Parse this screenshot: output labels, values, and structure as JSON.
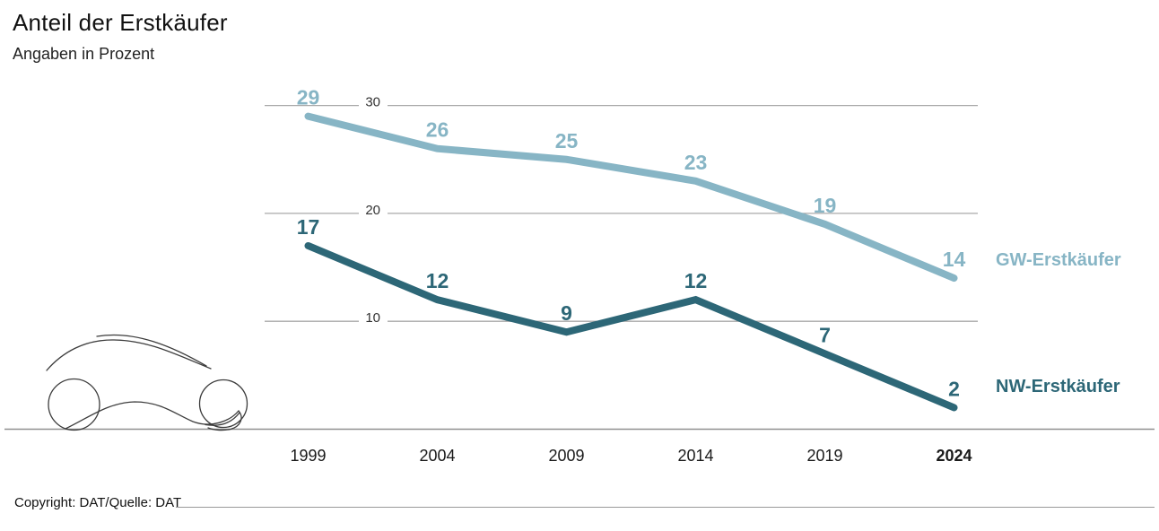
{
  "header": {
    "title": "Anteil der Erstkäufer",
    "subtitle": "Angaben in Prozent"
  },
  "chart_data": {
    "type": "line",
    "title": "Anteil der Erstkäufer",
    "subtitle": "Angaben in Prozent",
    "categories": [
      "1999",
      "2004",
      "2009",
      "2014",
      "2019",
      "2024"
    ],
    "bold_category": "2024",
    "series": [
      {
        "name": "GW-Erstkäufer",
        "values": [
          29,
          26,
          25,
          23,
          19,
          14
        ],
        "color": "#87b5c5"
      },
      {
        "name": "NW-Erstkäufer",
        "values": [
          17,
          12,
          9,
          12,
          7,
          2
        ],
        "color": "#2d6777"
      }
    ],
    "y_ticks": [
      10,
      20,
      30
    ],
    "ylim": [
      0,
      33
    ],
    "xlabel": "",
    "ylabel": "",
    "grid": "horizontal",
    "value_labels": true,
    "legend_position": "right-of-line-end"
  },
  "footer": {
    "copyright": "Copyright: DAT/Quelle: DAT"
  },
  "colors": {
    "gw_line": "#87b5c5",
    "nw_line": "#2d6777",
    "gridline": "#a8a8a8",
    "baseline": "#8f8f8f",
    "tick_text": "#333333",
    "axis_text": "#1a1a1a"
  },
  "decorations": {
    "car_sketch": "minimal-line-drawing-of-car"
  }
}
